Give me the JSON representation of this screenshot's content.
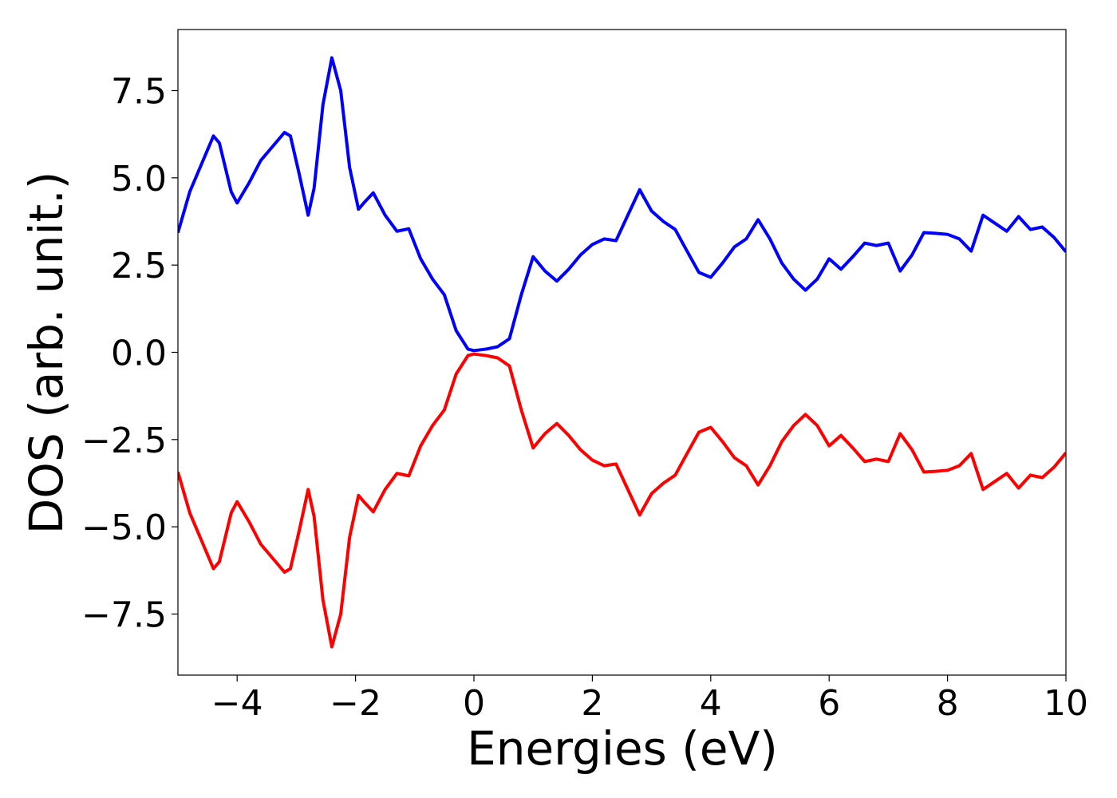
{
  "chart_data": {
    "type": "line",
    "xlabel": "Energies (eV)",
    "ylabel": "DOS (arb. unit.)",
    "x": [
      -5,
      -4.8,
      -4.6,
      -4.4,
      -4.3,
      -4.1,
      -4,
      -3.8,
      -3.6,
      -3.4,
      -3.2,
      -3.1,
      -2.95,
      -2.8,
      -2.7,
      -2.55,
      -2.4,
      -2.25,
      -2.1,
      -1.95,
      -1.85,
      -1.7,
      -1.5,
      -1.3,
      -1.1,
      -0.9,
      -0.7,
      -0.5,
      -0.3,
      -0.1,
      0,
      0.2,
      0.4,
      0.6,
      0.8,
      1,
      1.2,
      1.4,
      1.6,
      1.8,
      2,
      2.2,
      2.4,
      2.6,
      2.8,
      3,
      3.2,
      3.4,
      3.6,
      3.8,
      4,
      4.2,
      4.4,
      4.6,
      4.8,
      5,
      5.2,
      5.4,
      5.6,
      5.8,
      6,
      6.2,
      6.4,
      6.6,
      6.8,
      7,
      7.2,
      7.4,
      7.6,
      7.8,
      8,
      8.2,
      8.4,
      8.6,
      8.8,
      9,
      9.2,
      9.4,
      9.6,
      9.8,
      10
    ],
    "series": [
      {
        "color": "#0000ff",
        "values": [
          3.43,
          4.6,
          5.4,
          6.2,
          6.0,
          4.6,
          4.28,
          4.85,
          5.5,
          5.9,
          6.3,
          6.2,
          5.1,
          3.93,
          4.7,
          7.1,
          8.44,
          7.5,
          5.3,
          4.1,
          4.3,
          4.57,
          3.93,
          3.47,
          3.54,
          2.68,
          2.1,
          1.65,
          0.62,
          0.09,
          0.05,
          0.09,
          0.16,
          0.39,
          1.65,
          2.74,
          2.33,
          2.04,
          2.38,
          2.79,
          3.09,
          3.25,
          3.2,
          3.93,
          4.66,
          4.05,
          3.75,
          3.52,
          2.9,
          2.29,
          2.15,
          2.56,
          3.02,
          3.25,
          3.8,
          3.25,
          2.56,
          2.1,
          1.78,
          2.1,
          2.68,
          2.38,
          2.74,
          3.13,
          3.06,
          3.13,
          2.33,
          2.79,
          3.43,
          3.41,
          3.38,
          3.25,
          2.9,
          3.93,
          3.7,
          3.47,
          3.89,
          3.52,
          3.59,
          3.29,
          2.88
        ]
      },
      {
        "color": "#ff0000",
        "values": [
          -3.43,
          -4.6,
          -5.4,
          -6.2,
          -6.0,
          -4.6,
          -4.28,
          -4.85,
          -5.5,
          -5.9,
          -6.3,
          -6.2,
          -5.1,
          -3.93,
          -4.7,
          -7.1,
          -8.44,
          -7.5,
          -5.3,
          -4.1,
          -4.3,
          -4.57,
          -3.93,
          -3.47,
          -3.54,
          -2.68,
          -2.1,
          -1.65,
          -0.62,
          -0.09,
          -0.05,
          -0.09,
          -0.16,
          -0.39,
          -1.65,
          -2.74,
          -2.33,
          -2.04,
          -2.38,
          -2.79,
          -3.09,
          -3.25,
          -3.2,
          -3.93,
          -4.66,
          -4.05,
          -3.75,
          -3.52,
          -2.9,
          -2.29,
          -2.15,
          -2.56,
          -3.02,
          -3.25,
          -3.8,
          -3.25,
          -2.56,
          -2.1,
          -1.78,
          -2.1,
          -2.68,
          -2.38,
          -2.74,
          -3.13,
          -3.06,
          -3.13,
          -2.33,
          -2.79,
          -3.43,
          -3.41,
          -3.38,
          -3.25,
          -2.9,
          -3.93,
          -3.7,
          -3.47,
          -3.89,
          -3.52,
          -3.59,
          -3.29,
          -2.88
        ]
      }
    ],
    "xlim": [
      -5,
      10
    ],
    "ylim": [
      -9.25,
      9.25
    ],
    "xticks": [
      {
        "value": -4,
        "label": "−4"
      },
      {
        "value": -2,
        "label": "−2"
      },
      0,
      2,
      4,
      6,
      8,
      10
    ],
    "yticks": [
      {
        "value": -7.5,
        "label": "−7.5"
      },
      {
        "value": -5,
        "label": "−5.0"
      },
      {
        "value": -2.5,
        "label": "−2.5"
      },
      {
        "value": 0,
        "label": "0.0"
      },
      2.5,
      {
        "value": 5,
        "label": "5.0"
      },
      7.5
    ],
    "grid": false
  }
}
